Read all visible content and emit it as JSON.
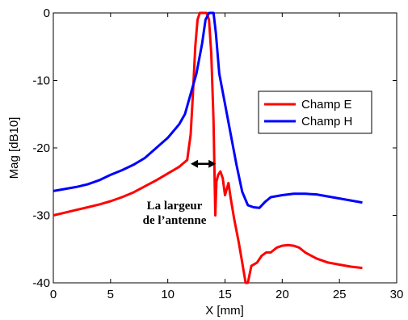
{
  "chart_data": {
    "type": "line",
    "xlabel": "X [mm]",
    "ylabel": "Mag [dB10]",
    "xlim": [
      0,
      30
    ],
    "ylim": [
      -40,
      0
    ],
    "xticks": [
      "0",
      "5",
      "10",
      "15",
      "20",
      "25",
      "30"
    ],
    "yticks": [
      "0",
      "-10",
      "-20",
      "-30",
      "-40"
    ],
    "grid": false,
    "legend_position": "top-right",
    "series": [
      {
        "name": "Champ E",
        "color": "#ff0000",
        "points": [
          [
            0,
            -30.0
          ],
          [
            1,
            -29.6
          ],
          [
            2,
            -29.2
          ],
          [
            3,
            -28.8
          ],
          [
            4,
            -28.4
          ],
          [
            5,
            -27.9
          ],
          [
            6,
            -27.3
          ],
          [
            7,
            -26.6
          ],
          [
            8,
            -25.7
          ],
          [
            9,
            -24.8
          ],
          [
            10,
            -23.8
          ],
          [
            11,
            -22.8
          ],
          [
            11.7,
            -21.8
          ],
          [
            12.0,
            -18.0
          ],
          [
            12.2,
            -12.0
          ],
          [
            12.4,
            -5.0
          ],
          [
            12.6,
            -1.0
          ],
          [
            12.8,
            0.0
          ],
          [
            13.0,
            0.0
          ],
          [
            13.2,
            0.0
          ],
          [
            13.4,
            0.0
          ],
          [
            13.6,
            -1.0
          ],
          [
            13.8,
            -6.0
          ],
          [
            14.0,
            -16.0
          ],
          [
            14.15,
            -30.0
          ],
          [
            14.25,
            -25.0
          ],
          [
            14.4,
            -24.0
          ],
          [
            14.6,
            -23.5
          ],
          [
            14.8,
            -24.5
          ],
          [
            15.0,
            -27.0
          ],
          [
            15.3,
            -25.2
          ],
          [
            15.5,
            -27.5
          ],
          [
            15.8,
            -30.5
          ],
          [
            16.2,
            -34.0
          ],
          [
            16.5,
            -37.0
          ],
          [
            16.8,
            -40.0
          ],
          [
            17.0,
            -40.0
          ],
          [
            17.3,
            -37.5
          ],
          [
            17.8,
            -37.0
          ],
          [
            18.2,
            -36.0
          ],
          [
            18.6,
            -35.5
          ],
          [
            19.0,
            -35.5
          ],
          [
            19.5,
            -34.8
          ],
          [
            20.0,
            -34.5
          ],
          [
            20.5,
            -34.4
          ],
          [
            21.0,
            -34.5
          ],
          [
            21.5,
            -34.8
          ],
          [
            22.0,
            -35.5
          ],
          [
            23.0,
            -36.4
          ],
          [
            24.0,
            -37.0
          ],
          [
            25.0,
            -37.3
          ],
          [
            26.0,
            -37.6
          ],
          [
            27.0,
            -37.8
          ]
        ]
      },
      {
        "name": "Champ H",
        "color": "#0000ff",
        "points": [
          [
            0,
            -26.4
          ],
          [
            1,
            -26.1
          ],
          [
            2,
            -25.8
          ],
          [
            3,
            -25.4
          ],
          [
            4,
            -24.8
          ],
          [
            5,
            -24.0
          ],
          [
            6,
            -23.3
          ],
          [
            7,
            -22.5
          ],
          [
            8,
            -21.5
          ],
          [
            9,
            -20.0
          ],
          [
            10,
            -18.5
          ],
          [
            11,
            -16.5
          ],
          [
            11.5,
            -15.0
          ],
          [
            12.0,
            -12.0
          ],
          [
            12.5,
            -9.0
          ],
          [
            13.0,
            -4.5
          ],
          [
            13.3,
            -1.0
          ],
          [
            13.6,
            0.0
          ],
          [
            14.0,
            0.0
          ],
          [
            14.2,
            -3.0
          ],
          [
            14.5,
            -9.0
          ],
          [
            15.0,
            -13.5
          ],
          [
            15.5,
            -18.0
          ],
          [
            16.0,
            -22.5
          ],
          [
            16.5,
            -26.5
          ],
          [
            17.0,
            -28.5
          ],
          [
            17.5,
            -28.8
          ],
          [
            18.0,
            -28.9
          ],
          [
            18.5,
            -28.0
          ],
          [
            19.0,
            -27.3
          ],
          [
            20.0,
            -27.0
          ],
          [
            21.0,
            -26.8
          ],
          [
            22.0,
            -26.8
          ],
          [
            23.0,
            -26.9
          ],
          [
            24.0,
            -27.2
          ],
          [
            25.0,
            -27.5
          ],
          [
            26.0,
            -27.8
          ],
          [
            27.0,
            -28.1
          ]
        ]
      }
    ],
    "annotation": {
      "lines": [
        "La largeur",
        "de l’antenne"
      ],
      "arrow_from": [
        12.0,
        -22.0
      ],
      "arrow_to": [
        14.2,
        -22.0
      ]
    }
  }
}
